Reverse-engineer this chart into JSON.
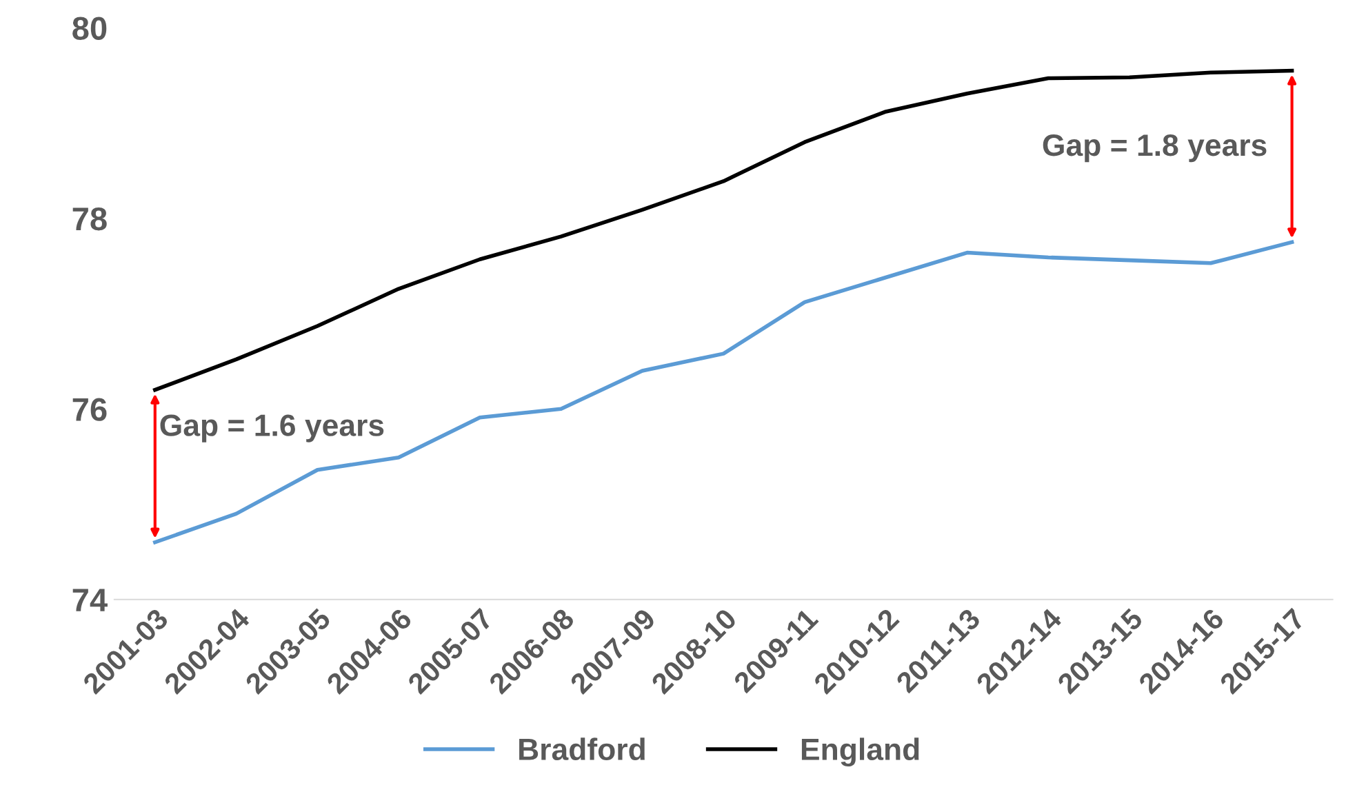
{
  "chart_data": {
    "type": "line",
    "categories": [
      "2001-03",
      "2002-04",
      "2003-05",
      "2004-06",
      "2005-07",
      "2006-08",
      "2007-09",
      "2008-10",
      "2009-11",
      "2010-12",
      "2011-13",
      "2012-14",
      "2013-15",
      "2014-16",
      "2015-17"
    ],
    "series": [
      {
        "name": "Bradford",
        "color": "#5b9bd5",
        "values": [
          74.6,
          74.9,
          75.36,
          75.49,
          75.91,
          76.0,
          76.4,
          76.58,
          77.12,
          77.38,
          77.64,
          77.59,
          77.56,
          77.53,
          77.75
        ]
      },
      {
        "name": "England",
        "color": "#000000",
        "values": [
          76.2,
          76.52,
          76.87,
          77.26,
          77.57,
          77.81,
          78.09,
          78.39,
          78.8,
          79.12,
          79.31,
          79.47,
          79.48,
          79.53,
          79.55
        ]
      }
    ],
    "ylim": [
      74,
      80
    ],
    "yticks": [
      74,
      76,
      78,
      80
    ],
    "grid": false,
    "legend": "bottom",
    "marker": "none",
    "line_style": "solid",
    "annotations": [
      "Gap = 1.6 years",
      "Gap = 1.8 years"
    ]
  }
}
